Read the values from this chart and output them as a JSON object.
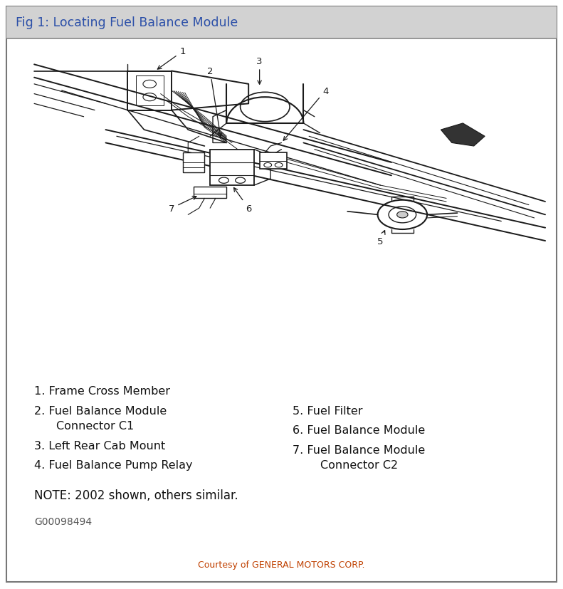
{
  "title": "Fig 1: Locating Fuel Balance Module",
  "title_color": "#2b4fa8",
  "title_bg": "#d0d0d0",
  "bg_color": "#ffffff",
  "border_color": "#888888",
  "courtesy_text": "Courtesy of GENERAL MOTORS CORP.",
  "courtesy_color": "#c04000",
  "note_text": "NOTE: 2002 shown, others similar.",
  "code_text": "G00098494",
  "line_color": "#1a1a1a",
  "label_color": "#1a1a1a",
  "fig_width": 7.91,
  "fig_height": 8.28,
  "dpi": 100
}
